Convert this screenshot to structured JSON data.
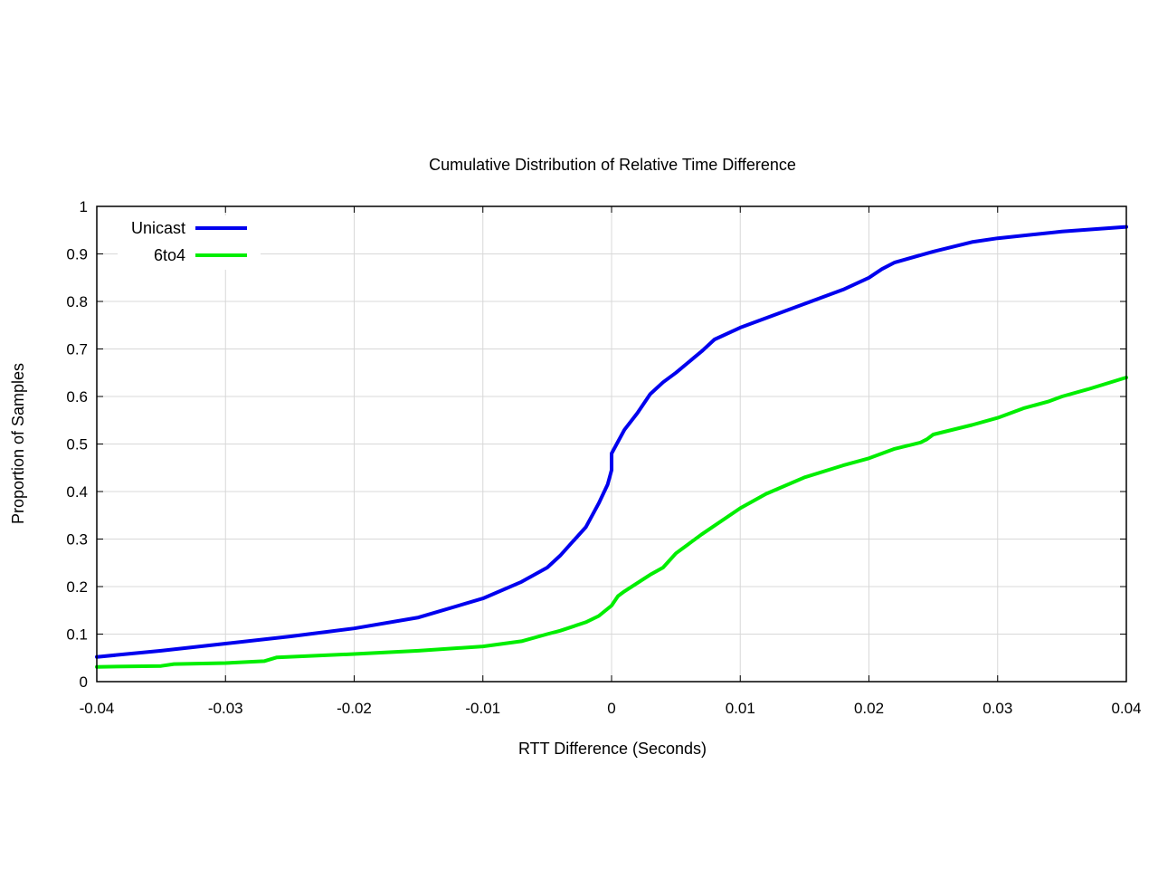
{
  "chart_data": {
    "type": "line",
    "title": "Cumulative Distribution of Relative Time Difference",
    "xlabel": "RTT Difference (Seconds)",
    "ylabel": "Proportion of Samples",
    "xlim": [
      -0.04,
      0.04
    ],
    "ylim": [
      0,
      1
    ],
    "xticks": [
      "-0.04",
      "-0.03",
      "-0.02",
      "-0.01",
      "0",
      "0.01",
      "0.02",
      "0.03",
      "0.04"
    ],
    "yticks": [
      "0",
      "0.1",
      "0.2",
      "0.3",
      "0.4",
      "0.5",
      "0.6",
      "0.7",
      "0.8",
      "0.9",
      "1"
    ],
    "grid": true,
    "legend_position": "top-left",
    "series": [
      {
        "name": "Unicast",
        "color": "#0000ee",
        "x": [
          -0.04,
          -0.035,
          -0.03,
          -0.025,
          -0.02,
          -0.015,
          -0.01,
          -0.007,
          -0.005,
          -0.004,
          -0.003,
          -0.002,
          -0.001,
          -0.0003,
          0,
          0,
          0.001,
          0.002,
          0.003,
          0.004,
          0.005,
          0.007,
          0.008,
          0.01,
          0.012,
          0.015,
          0.018,
          0.02,
          0.021,
          0.022,
          0.025,
          0.028,
          0.03,
          0.035,
          0.04
        ],
        "y": [
          0.052,
          0.065,
          0.08,
          0.095,
          0.112,
          0.135,
          0.175,
          0.21,
          0.24,
          0.265,
          0.295,
          0.325,
          0.375,
          0.415,
          0.445,
          0.48,
          0.53,
          0.565,
          0.605,
          0.63,
          0.65,
          0.695,
          0.72,
          0.745,
          0.765,
          0.795,
          0.825,
          0.85,
          0.868,
          0.882,
          0.905,
          0.925,
          0.933,
          0.947,
          0.957
        ]
      },
      {
        "name": "6to4",
        "color": "#00ee00",
        "x": [
          -0.04,
          -0.035,
          -0.034,
          -0.03,
          -0.027,
          -0.026,
          -0.02,
          -0.015,
          -0.01,
          -0.007,
          -0.005,
          -0.004,
          -0.002,
          -0.001,
          0,
          0.0005,
          0.001,
          0.003,
          0.004,
          0.005,
          0.007,
          0.01,
          0.012,
          0.015,
          0.018,
          0.02,
          0.022,
          0.024,
          0.0245,
          0.025,
          0.028,
          0.03,
          0.032,
          0.034,
          0.035,
          0.037,
          0.04
        ],
        "y": [
          0.031,
          0.033,
          0.037,
          0.039,
          0.043,
          0.051,
          0.058,
          0.065,
          0.074,
          0.085,
          0.1,
          0.107,
          0.125,
          0.138,
          0.16,
          0.18,
          0.19,
          0.225,
          0.24,
          0.27,
          0.31,
          0.365,
          0.395,
          0.43,
          0.455,
          0.47,
          0.49,
          0.503,
          0.51,
          0.52,
          0.54,
          0.555,
          0.575,
          0.59,
          0.6,
          0.615,
          0.64
        ]
      }
    ]
  }
}
